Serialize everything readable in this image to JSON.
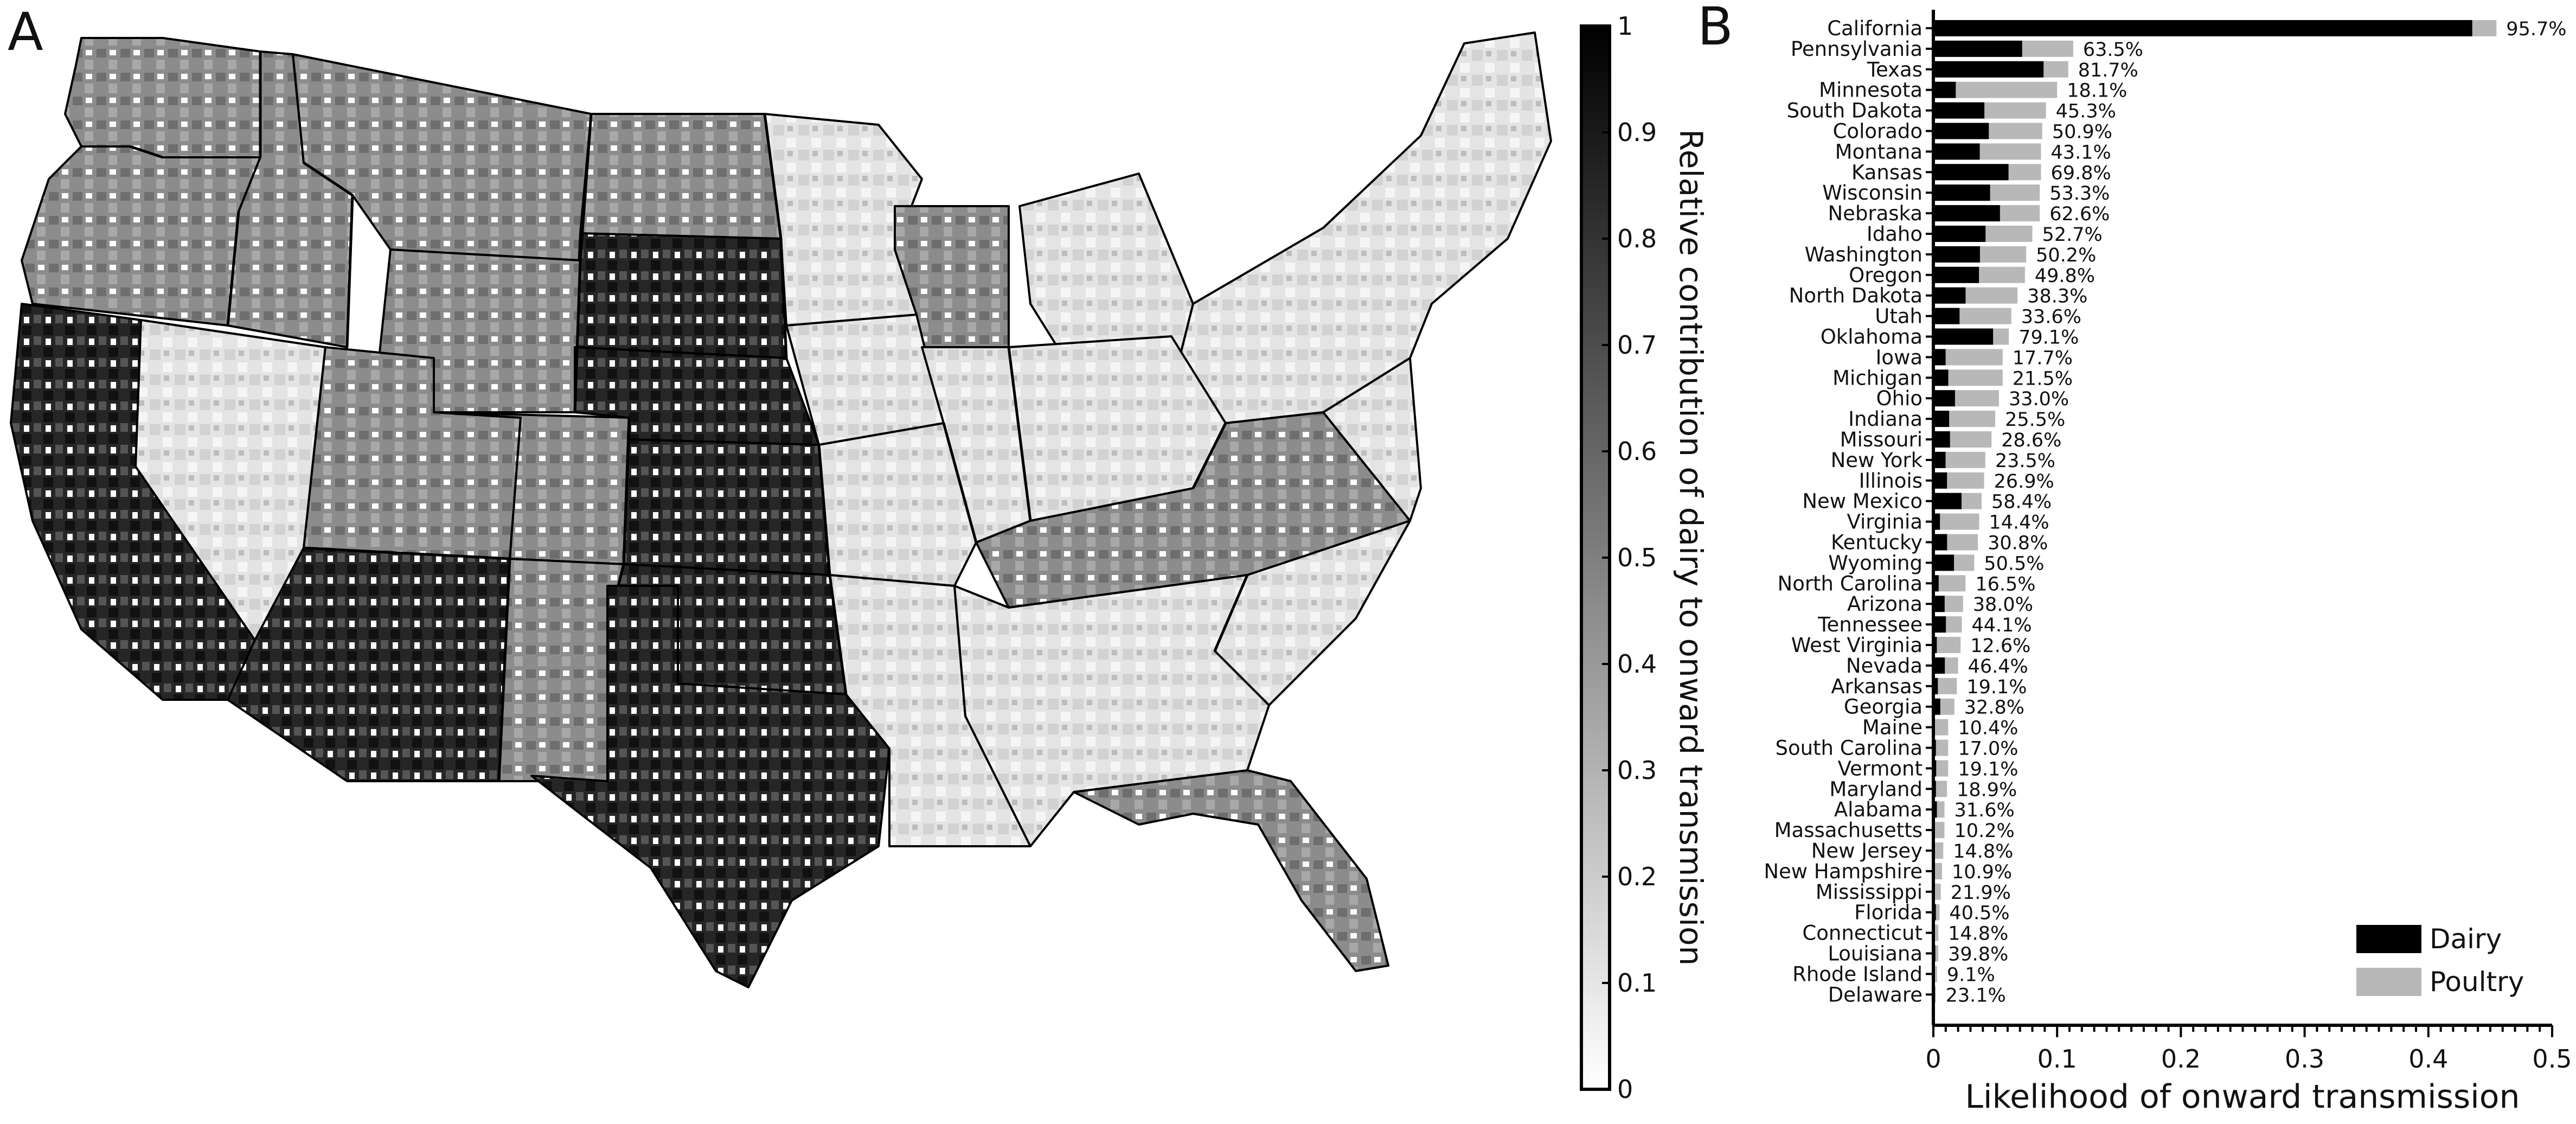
{
  "panels": {
    "a": {
      "letter": "A"
    },
    "b": {
      "letter": "B"
    }
  },
  "colorbar": {
    "title": "Relative contribution of dairy to onward transmission",
    "ticks": [
      "0",
      "0.1",
      "0.2",
      "0.3",
      "0.4",
      "0.5",
      "0.6",
      "0.7",
      "0.8",
      "0.9",
      "1"
    ],
    "range": [
      0,
      1
    ],
    "gradient": [
      "#ffffff",
      "#000000"
    ]
  },
  "map": {
    "description_level_note": "",
    "fill_dark": "#1c1c1c",
    "fill_mid": "#8a8a8a",
    "fill_light": "#e6e6e6",
    "stroke": "#000000"
  },
  "chart_data": {
    "type": "bar",
    "orientation": "horizontal",
    "stacked": true,
    "xlabel": "Likelihood of onward transmission",
    "xlim": [
      0,
      0.5
    ],
    "xticks": [
      "0",
      "0.1",
      "0.2",
      "0.3",
      "0.4",
      "0.5"
    ],
    "legend": {
      "position": "bottom-right"
    },
    "categories": [
      "California",
      "Pennsylvania",
      "Texas",
      "Minnesota",
      "South Dakota",
      "Colorado",
      "Montana",
      "Kansas",
      "Wisconsin",
      "Nebraska",
      "Idaho",
      "Washington",
      "Oregon",
      "North Dakota",
      "Utah",
      "Oklahoma",
      "Iowa",
      "Michigan",
      "Ohio",
      "Indiana",
      "Missouri",
      "New York",
      "Illinois",
      "New Mexico",
      "Virginia",
      "Kentucky",
      "Wyoming",
      "North Carolina",
      "Arizona",
      "Tennessee",
      "West Virginia",
      "Nevada",
      "Arkansas",
      "Georgia",
      "Maine",
      "South Carolina",
      "Vermont",
      "Maryland",
      "Alabama",
      "Massachusetts",
      "New Jersey",
      "New Hampshire",
      "Mississippi",
      "Florida",
      "Connecticut",
      "Louisiana",
      "Rhode Island",
      "Delaware"
    ],
    "percent_labels": [
      "95.7%",
      "63.5%",
      "81.7%",
      "18.1%",
      "45.3%",
      "50.9%",
      "43.1%",
      "69.8%",
      "53.3%",
      "62.6%",
      "52.7%",
      "50.2%",
      "49.8%",
      "38.3%",
      "33.6%",
      "79.1%",
      "17.7%",
      "21.5%",
      "33.0%",
      "25.5%",
      "28.6%",
      "23.5%",
      "26.9%",
      "58.4%",
      "14.4%",
      "30.8%",
      "50.5%",
      "16.5%",
      "38.0%",
      "44.1%",
      "12.6%",
      "46.4%",
      "19.1%",
      "32.8%",
      "10.4%",
      "17.0%",
      "19.1%",
      "18.9%",
      "31.6%",
      "10.2%",
      "14.8%",
      "10.9%",
      "21.9%",
      "40.5%",
      "14.8%",
      "39.8%",
      "9.1%",
      "23.1%"
    ],
    "totals": [
      0.455,
      0.113,
      0.109,
      0.1,
      0.091,
      0.088,
      0.087,
      0.087,
      0.086,
      0.086,
      0.08,
      0.075,
      0.074,
      0.068,
      0.063,
      0.061,
      0.056,
      0.056,
      0.053,
      0.05,
      0.047,
      0.042,
      0.041,
      0.039,
      0.037,
      0.036,
      0.033,
      0.026,
      0.024,
      0.023,
      0.022,
      0.02,
      0.019,
      0.017,
      0.012,
      0.012,
      0.012,
      0.011,
      0.009,
      0.009,
      0.008,
      0.007,
      0.006,
      0.005,
      0.004,
      0.004,
      0.003,
      0.002
    ],
    "series": [
      {
        "name": "Dairy",
        "color": "#000000"
      },
      {
        "name": "Poultry",
        "color": "#b8b8b8"
      }
    ]
  }
}
